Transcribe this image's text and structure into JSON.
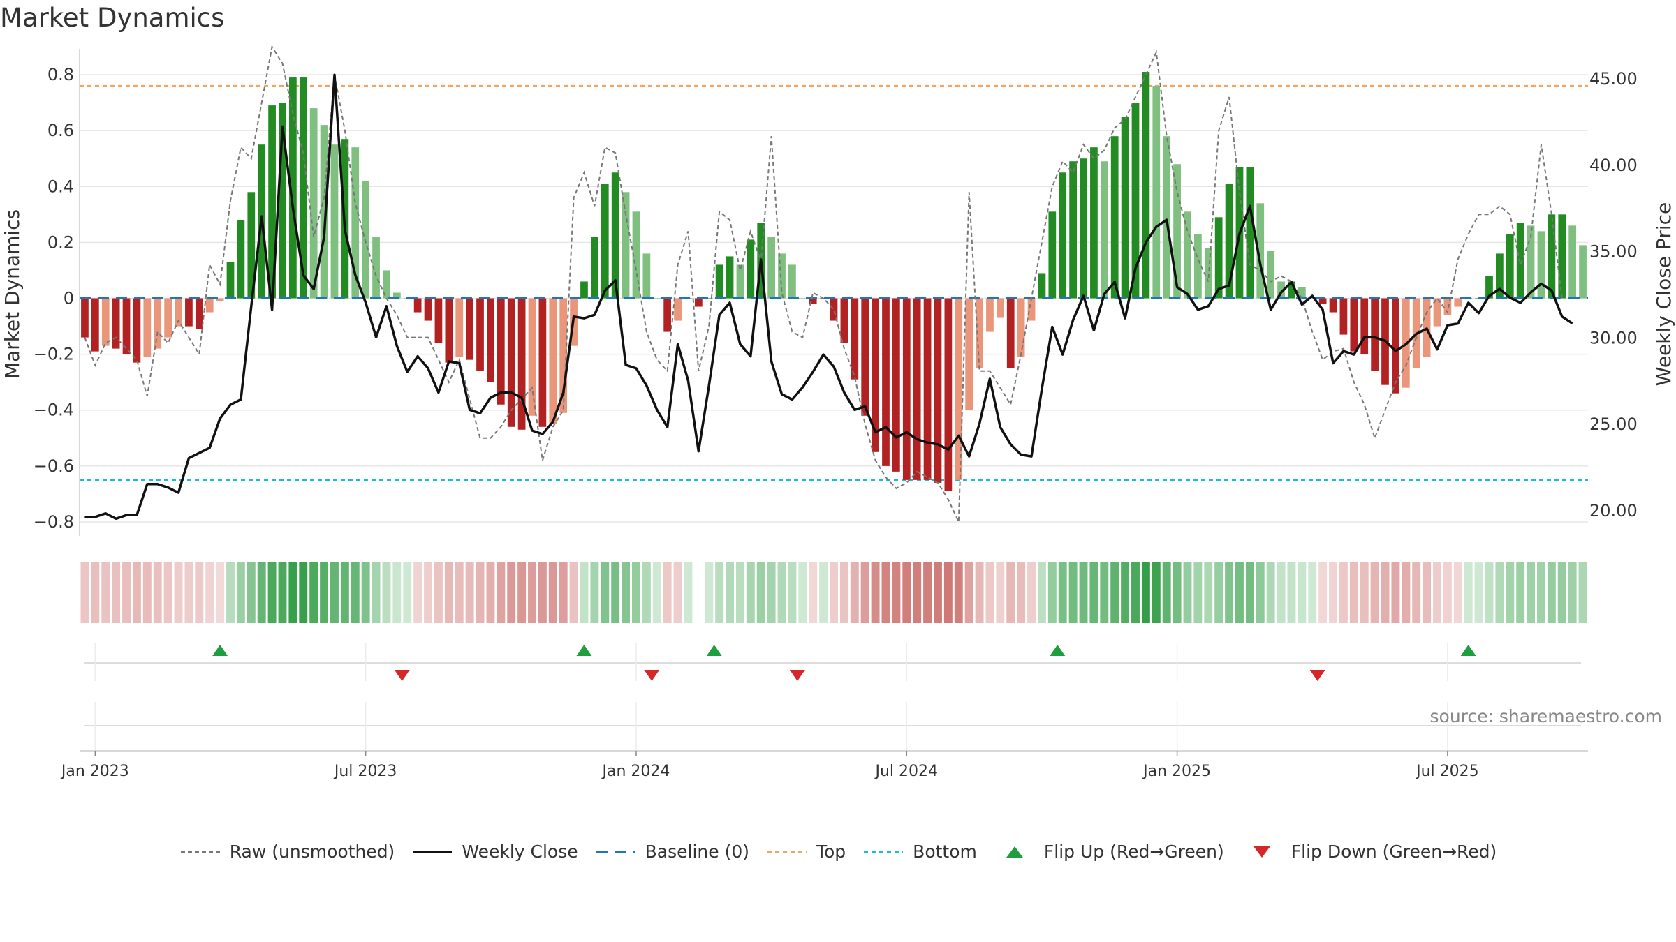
{
  "title": "Market Dynamics",
  "source": "source: sharemaestro.com",
  "colors": {
    "pos_strong": "#228b22",
    "pos_weak": "#7fbf7f",
    "neg_strong": "#b22222",
    "neg_weak": "#e9967a",
    "raw": "#777777",
    "close": "#111111",
    "baseline": "#1f77b4",
    "top": "#f4a460",
    "bottom": "#17becf",
    "flip_up": "#1e9e3e",
    "flip_down": "#d62728"
  },
  "chart_data": {
    "type": "bar",
    "title": "Market Dynamics",
    "ylabel": "Market Dynamics",
    "y2label": "Weekly Close Price",
    "ylim": [
      -0.85,
      0.88
    ],
    "y2lim": [
      18.5,
      46.5
    ],
    "yticks": [
      "0.8",
      "0.6",
      "0.4",
      "0.2",
      "0",
      "−0.2",
      "−0.4",
      "−0.6",
      "−0.8"
    ],
    "ytick_values": [
      0.8,
      0.6,
      0.4,
      0.2,
      0,
      -0.2,
      -0.4,
      -0.6,
      -0.8
    ],
    "y2ticks": [
      "45.00",
      "40.00",
      "35.00",
      "30.00",
      "25.00",
      "20.00"
    ],
    "y2tick_values": [
      45,
      40,
      35,
      30,
      25,
      20
    ],
    "xticks": [
      "Jan 2023",
      "Jul 2023",
      "Jan 2024",
      "Jul 2024",
      "Jan 2025",
      "Jul 2025"
    ],
    "xtick_weeks": [
      1.5,
      27.5,
      53.5,
      79.5,
      105.5,
      131.5
    ],
    "top_level": 0.76,
    "bottom_level": -0.65,
    "baseline": 0,
    "bars": [
      -0.14,
      -0.19,
      -0.17,
      -0.18,
      -0.2,
      -0.23,
      -0.21,
      -0.18,
      -0.14,
      -0.1,
      -0.1,
      -0.11,
      -0.05,
      -0.01,
      0.13,
      0.28,
      0.38,
      0.55,
      0.69,
      0.7,
      0.79,
      0.79,
      0.68,
      0.62,
      0.55,
      0.57,
      0.54,
      0.42,
      0.22,
      0.1,
      0.02,
      0.0,
      -0.05,
      -0.08,
      -0.16,
      -0.23,
      -0.21,
      -0.22,
      -0.26,
      -0.3,
      -0.38,
      -0.46,
      -0.47,
      -0.42,
      -0.46,
      -0.45,
      -0.41,
      -0.17,
      0.06,
      0.22,
      0.41,
      0.45,
      0.38,
      0.31,
      0.16,
      0.0,
      -0.12,
      -0.08,
      0.0,
      -0.03,
      0.0,
      0.12,
      0.15,
      0.12,
      0.21,
      0.27,
      0.22,
      0.16,
      0.12,
      0.0,
      -0.02,
      0.0,
      -0.08,
      -0.16,
      -0.29,
      -0.42,
      -0.55,
      -0.6,
      -0.62,
      -0.65,
      -0.65,
      -0.65,
      -0.66,
      -0.69,
      -0.65,
      -0.4,
      -0.25,
      -0.12,
      -0.07,
      -0.25,
      -0.21,
      -0.08,
      0.09,
      0.31,
      0.45,
      0.49,
      0.5,
      0.54,
      0.49,
      0.58,
      0.65,
      0.7,
      0.81,
      0.76,
      0.58,
      0.48,
      0.31,
      0.23,
      0.18,
      0.29,
      0.41,
      0.47,
      0.47,
      0.34,
      0.17,
      0.06,
      0.06,
      0.04,
      0.0,
      -0.02,
      -0.05,
      -0.13,
      -0.19,
      -0.2,
      -0.26,
      -0.31,
      -0.34,
      -0.32,
      -0.25,
      -0.21,
      -0.1,
      -0.06,
      -0.03,
      0.0,
      0.0,
      0.08,
      0.16,
      0.23,
      0.27,
      0.26,
      0.24,
      0.3,
      0.3,
      0.26,
      0.19
    ],
    "raw": [
      -0.14,
      -0.24,
      -0.16,
      -0.14,
      -0.18,
      -0.22,
      -0.35,
      -0.12,
      -0.16,
      -0.08,
      -0.14,
      -0.2,
      0.12,
      0.05,
      0.35,
      0.54,
      0.5,
      0.7,
      0.9,
      0.84,
      0.66,
      0.52,
      0.22,
      0.36,
      0.8,
      0.6,
      0.34,
      0.2,
      0.08,
      0.0,
      -0.06,
      -0.14,
      -0.14,
      -0.14,
      -0.22,
      -0.3,
      -0.22,
      -0.36,
      -0.5,
      -0.5,
      -0.46,
      -0.4,
      -0.36,
      -0.32,
      -0.58,
      -0.46,
      -0.4,
      0.36,
      0.45,
      0.33,
      0.54,
      0.52,
      0.3,
      0.1,
      -0.12,
      -0.22,
      -0.26,
      0.12,
      0.24,
      -0.26,
      -0.1,
      0.31,
      0.28,
      0.1,
      0.24,
      0.13,
      0.58,
      0.02,
      -0.12,
      -0.14,
      0.02,
      0.0,
      -0.04,
      -0.18,
      -0.28,
      -0.45,
      -0.58,
      -0.64,
      -0.68,
      -0.66,
      -0.62,
      -0.64,
      -0.66,
      -0.72,
      -0.8,
      0.38,
      -0.26,
      -0.26,
      -0.32,
      -0.38,
      -0.2,
      0.0,
      0.2,
      0.4,
      0.49,
      0.45,
      0.55,
      0.5,
      0.53,
      0.61,
      0.64,
      0.72,
      0.8,
      0.88,
      0.58,
      0.38,
      0.24,
      0.14,
      0.06,
      0.6,
      0.72,
      0.38,
      0.12,
      0.1,
      0.06,
      0.08,
      0.06,
      0.0,
      -0.12,
      -0.22,
      -0.19,
      -0.18,
      -0.3,
      -0.38,
      -0.5,
      -0.4,
      -0.3,
      -0.24,
      -0.14,
      -0.05,
      0.0,
      -0.05,
      0.14,
      0.23,
      0.3,
      0.3,
      0.33,
      0.3,
      0.12,
      0.22,
      0.55,
      0.3,
      0.0
    ],
    "close": [
      19.6,
      19.6,
      19.8,
      19.5,
      19.7,
      19.7,
      21.5,
      21.5,
      21.3,
      21.0,
      23.0,
      23.3,
      23.6,
      25.3,
      26.1,
      26.4,
      31.8,
      37.0,
      31.6,
      42.2,
      37.5,
      33.6,
      32.8,
      35.8,
      45.2,
      36.2,
      33.6,
      32.0,
      30.0,
      31.8,
      29.5,
      28.0,
      28.9,
      28.2,
      26.8,
      28.6,
      28.5,
      25.8,
      25.6,
      26.5,
      26.8,
      26.8,
      26.5,
      24.6,
      24.4,
      25.1,
      26.8,
      31.2,
      31.1,
      31.3,
      32.7,
      33.3,
      28.4,
      28.2,
      27.2,
      25.8,
      24.8,
      29.6,
      27.5,
      23.4,
      27.2,
      31.3,
      32.0,
      29.6,
      28.9,
      34.5,
      28.6,
      26.7,
      26.4,
      27.1,
      28.0,
      29.0,
      28.3,
      26.8,
      25.8,
      26.0,
      24.5,
      24.8,
      24.2,
      24.5,
      24.1,
      23.9,
      23.8,
      23.5,
      24.3,
      23.1,
      25.0,
      27.6,
      24.8,
      23.8,
      23.2,
      23.1,
      27.0,
      30.6,
      29.0,
      31.0,
      32.4,
      30.4,
      32.5,
      33.2,
      31.1,
      34.0,
      35.5,
      36.4,
      36.8,
      32.9,
      32.5,
      31.6,
      31.8,
      32.8,
      33.0,
      36.0,
      37.6,
      34.2,
      31.6,
      32.6,
      33.2,
      31.9,
      32.4,
      31.6,
      28.5,
      29.2,
      29.0,
      30.0,
      30.0,
      29.8,
      29.2,
      29.6,
      30.2,
      30.5,
      29.3,
      30.7,
      30.8,
      32.0,
      31.4,
      32.4,
      32.8,
      32.3,
      32.0,
      32.6,
      33.1,
      32.7,
      31.2,
      30.8
    ],
    "flip_up_weeks": [
      13.5,
      48.5,
      61,
      94,
      133.5
    ],
    "flip_down_weeks": [
      31,
      55,
      69,
      119
    ],
    "heat_gap_week": 59
  },
  "legend": [
    {
      "key": "raw",
      "label": "Raw (unsmoothed)"
    },
    {
      "key": "close",
      "label": "Weekly Close"
    },
    {
      "key": "baseline",
      "label": "Baseline (0)"
    },
    {
      "key": "top",
      "label": "Top"
    },
    {
      "key": "bottom",
      "label": "Bottom"
    },
    {
      "key": "flip_up",
      "label": "Flip Up (Red→Green)"
    },
    {
      "key": "flip_down",
      "label": "Flip Down (Green→Red)"
    }
  ]
}
